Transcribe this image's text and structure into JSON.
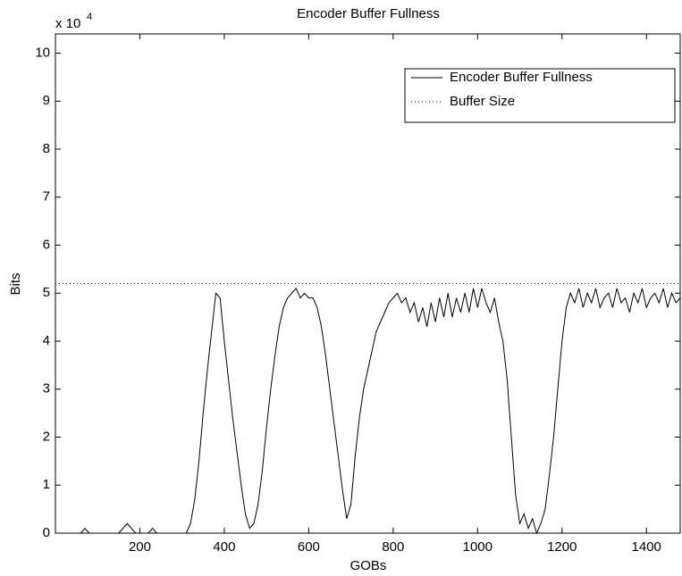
{
  "chart_data": {
    "type": "line",
    "title": "Encoder Buffer Fullness",
    "xlabel": "GOBs",
    "ylabel": "Bits",
    "y_multiplier": "x 10",
    "y_exponent": "4",
    "xlim": [
      0,
      1480
    ],
    "ylim": [
      0,
      10.4
    ],
    "xticks": [
      200,
      400,
      600,
      800,
      1000,
      1200,
      1400
    ],
    "yticks": [
      0,
      1,
      2,
      3,
      4,
      5,
      6,
      7,
      8,
      9,
      10
    ],
    "legend": "upper right",
    "grid": false,
    "series": [
      {
        "name": "Encoder Buffer Fullness",
        "color": "#000000",
        "style": "solid",
        "x": [
          0,
          10,
          20,
          30,
          40,
          50,
          60,
          70,
          80,
          90,
          100,
          110,
          120,
          130,
          140,
          150,
          160,
          170,
          180,
          190,
          200,
          210,
          220,
          230,
          240,
          250,
          260,
          270,
          280,
          290,
          300,
          310,
          320,
          330,
          340,
          350,
          360,
          370,
          380,
          390,
          400,
          410,
          420,
          430,
          440,
          450,
          460,
          470,
          480,
          490,
          500,
          510,
          520,
          530,
          540,
          550,
          560,
          570,
          580,
          590,
          600,
          610,
          620,
          630,
          640,
          650,
          660,
          670,
          680,
          690,
          700,
          710,
          720,
          730,
          740,
          750,
          760,
          770,
          780,
          790,
          800,
          810,
          820,
          830,
          840,
          850,
          860,
          870,
          880,
          890,
          900,
          910,
          920,
          930,
          940,
          950,
          960,
          970,
          980,
          990,
          1000,
          1010,
          1020,
          1030,
          1040,
          1050,
          1060,
          1070,
          1080,
          1090,
          1100,
          1110,
          1120,
          1130,
          1140,
          1150,
          1160,
          1170,
          1180,
          1190,
          1200,
          1210,
          1220,
          1230,
          1240,
          1250,
          1260,
          1270,
          1280,
          1290,
          1300,
          1310,
          1320,
          1330,
          1340,
          1350,
          1360,
          1370,
          1380,
          1390,
          1400,
          1410,
          1420,
          1430,
          1440,
          1450,
          1460,
          1470,
          1480
        ],
        "values": [
          0,
          0,
          0,
          0,
          0,
          0,
          0,
          0.1,
          0,
          0,
          0,
          0,
          0,
          0,
          0,
          0,
          0.1,
          0.2,
          0.1,
          0,
          0,
          0,
          0,
          0.1,
          0,
          0,
          0,
          0,
          0,
          0,
          0,
          0,
          0.2,
          0.7,
          1.5,
          2.5,
          3.4,
          4.2,
          5.0,
          4.9,
          4.0,
          3.2,
          2.4,
          1.7,
          1.0,
          0.4,
          0.1,
          0.2,
          0.6,
          1.3,
          2.2,
          3.0,
          3.7,
          4.3,
          4.7,
          4.9,
          5.0,
          5.1,
          4.9,
          5.0,
          4.9,
          4.9,
          4.7,
          4.3,
          3.7,
          3.0,
          2.3,
          1.6,
          0.9,
          0.3,
          0.6,
          1.6,
          2.4,
          3.0,
          3.4,
          3.8,
          4.2,
          4.4,
          4.6,
          4.8,
          4.9,
          5.0,
          4.8,
          4.9,
          4.6,
          4.8,
          4.4,
          4.7,
          4.3,
          4.8,
          4.4,
          4.9,
          4.5,
          5.0,
          4.5,
          4.9,
          4.6,
          5.0,
          4.6,
          5.1,
          4.7,
          5.1,
          4.8,
          4.6,
          4.9,
          4.4,
          4.0,
          3.2,
          2.0,
          0.8,
          0.2,
          0.4,
          0.1,
          0.3,
          0,
          0.2,
          0.5,
          1.2,
          2.0,
          3.0,
          4.0,
          4.7,
          5.0,
          4.8,
          5.1,
          4.7,
          5.0,
          4.8,
          5.1,
          4.7,
          4.9,
          5.0,
          4.7,
          5.1,
          4.8,
          4.9,
          4.6,
          5.0,
          4.8,
          5.1,
          4.7,
          4.9,
          5.0,
          4.8,
          5.1,
          4.7,
          5.0,
          4.8,
          4.9
        ]
      },
      {
        "name": "Buffer Size",
        "color": "#000000",
        "style": "dotted",
        "x": [
          0,
          1480
        ],
        "values": [
          5.2,
          5.2
        ]
      }
    ]
  }
}
